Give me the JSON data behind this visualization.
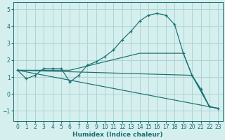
{
  "xlabel": "Humidex (Indice chaleur)",
  "background_color": "#d5eeee",
  "line_color": "#1a7070",
  "grid_color": "#aed4d4",
  "ylim": [
    -1.6,
    5.4
  ],
  "xlim": [
    -0.5,
    23.5
  ],
  "yticks": [
    -1,
    0,
    1,
    2,
    3,
    4,
    5
  ],
  "xticks": [
    0,
    1,
    2,
    3,
    4,
    5,
    6,
    7,
    8,
    9,
    10,
    11,
    12,
    13,
    14,
    15,
    16,
    17,
    18,
    19,
    20,
    21,
    22,
    23
  ],
  "series": [
    {
      "x": [
        0,
        1,
        2,
        3,
        4,
        5,
        6,
        7,
        8,
        9,
        10,
        11,
        12,
        13,
        14,
        15,
        16,
        17,
        18,
        19,
        20,
        21,
        22,
        23
      ],
      "y": [
        1.4,
        0.9,
        1.1,
        1.5,
        1.5,
        1.5,
        0.7,
        1.1,
        1.7,
        1.9,
        2.2,
        2.6,
        3.2,
        3.7,
        4.3,
        4.65,
        4.75,
        4.65,
        4.1,
        2.4,
        1.1,
        0.3,
        -0.75,
        -0.85
      ],
      "marker": true
    },
    {
      "x": [
        0,
        20,
        22,
        23
      ],
      "y": [
        1.4,
        1.1,
        -0.75,
        -0.85
      ],
      "marker": false
    },
    {
      "x": [
        0,
        23
      ],
      "y": [
        1.4,
        -0.85
      ],
      "marker": false
    },
    {
      "x": [
        0,
        6,
        14,
        15,
        17,
        19,
        20,
        22,
        23
      ],
      "y": [
        1.4,
        1.4,
        2.4,
        2.4,
        2.4,
        2.4,
        1.1,
        -0.75,
        -0.85
      ],
      "marker": false
    }
  ]
}
